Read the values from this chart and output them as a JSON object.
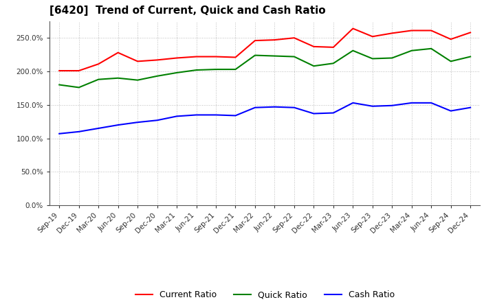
{
  "title": "[6420]  Trend of Current, Quick and Cash Ratio",
  "x_labels": [
    "Sep-19",
    "Dec-19",
    "Mar-20",
    "Jun-20",
    "Sep-20",
    "Dec-20",
    "Mar-21",
    "Jun-21",
    "Sep-21",
    "Dec-21",
    "Mar-22",
    "Jun-22",
    "Sep-22",
    "Dec-22",
    "Mar-23",
    "Jun-23",
    "Sep-23",
    "Dec-23",
    "Mar-24",
    "Jun-24",
    "Sep-24",
    "Dec-24"
  ],
  "current_ratio": [
    201,
    201,
    211,
    228,
    215,
    217,
    220,
    222,
    222,
    221,
    246,
    247,
    250,
    237,
    236,
    264,
    252,
    257,
    261,
    261,
    248,
    258
  ],
  "quick_ratio": [
    180,
    176,
    188,
    190,
    187,
    193,
    198,
    202,
    203,
    203,
    224,
    223,
    222,
    208,
    212,
    231,
    219,
    220,
    231,
    234,
    215,
    222
  ],
  "cash_ratio": [
    107,
    110,
    115,
    120,
    124,
    127,
    133,
    135,
    135,
    134,
    146,
    147,
    146,
    137,
    138,
    153,
    148,
    149,
    153,
    153,
    141,
    146
  ],
  "ylim": [
    0,
    275
  ],
  "yticks": [
    0,
    50,
    100,
    150,
    200,
    250
  ],
  "yticklabels": [
    "0.0%",
    "50.0%",
    "100.0%",
    "150.0%",
    "200.0%",
    "250.0%"
  ],
  "current_color": "#ff0000",
  "quick_color": "#008000",
  "cash_color": "#0000ff",
  "bg_color": "#ffffff",
  "grid_color": "#bbbbbb",
  "line_width": 1.5,
  "title_fontsize": 11,
  "tick_fontsize": 7.5,
  "legend_fontsize": 9
}
